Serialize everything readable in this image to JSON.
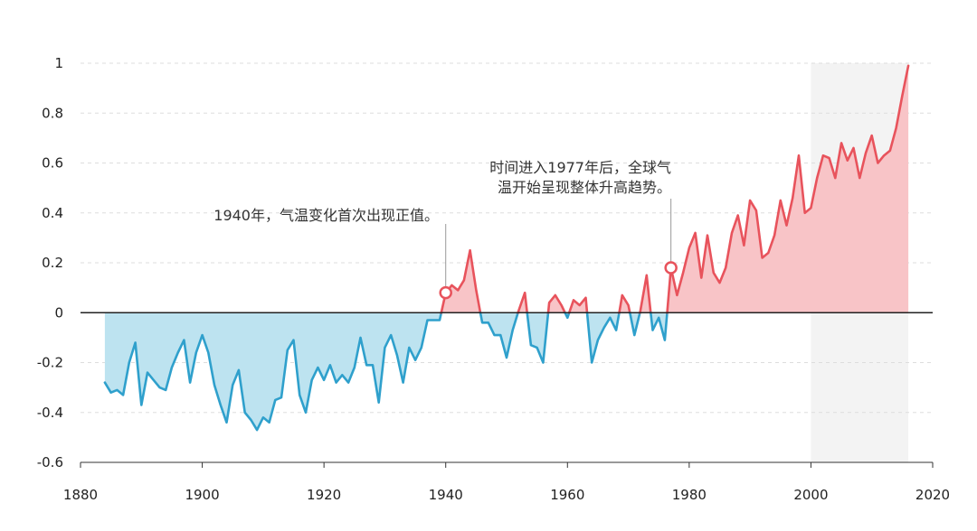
{
  "chart_data": {
    "type": "area",
    "title": "",
    "xlabel": "",
    "ylabel": "",
    "xlim": [
      1880,
      2020
    ],
    "ylim": [
      -0.6,
      1
    ],
    "x_ticks": [
      1880,
      1900,
      1920,
      1940,
      1960,
      1980,
      2000,
      2020
    ],
    "y_ticks": [
      -0.6,
      -0.4,
      -0.2,
      0,
      0.2,
      0.4,
      0.6,
      0.8,
      1
    ],
    "y_tick_labels": [
      "-0.6",
      "-0.4",
      "-0.2",
      "0",
      "0.2",
      "0.4",
      "0.6",
      "0.8",
      "1"
    ],
    "grid": "horizontal dashed",
    "shaded_region": {
      "x_start": 2000,
      "x_end": 2016,
      "color": "#f3f3f3"
    },
    "colors": {
      "negative_line": "#2fa0cc",
      "negative_fill": "#bde3f0",
      "positive_line": "#e8535c",
      "positive_fill": "#f8c4c7",
      "zero_line": "#222222",
      "grid": "#dddddd",
      "axis": "#333333"
    },
    "series": [
      {
        "x": [
          1884,
          1885,
          1886,
          1887,
          1888,
          1889,
          1890,
          1891,
          1892,
          1893,
          1894,
          1895,
          1896,
          1897,
          1898,
          1899,
          1900,
          1901,
          1902,
          1903,
          1904,
          1905,
          1906,
          1907,
          1908,
          1909,
          1910,
          1911,
          1912,
          1913,
          1914,
          1915,
          1916,
          1917,
          1918,
          1919,
          1920,
          1921,
          1922,
          1923,
          1924,
          1925,
          1926,
          1927,
          1928,
          1929,
          1930,
          1931,
          1932,
          1933,
          1934,
          1935,
          1936,
          1937,
          1938,
          1939,
          1940,
          1941,
          1942,
          1943,
          1944,
          1945,
          1946,
          1947,
          1948,
          1949,
          1950,
          1951,
          1952,
          1953,
          1954,
          1955,
          1956,
          1957,
          1958,
          1959,
          1960,
          1961,
          1962,
          1963,
          1964,
          1965,
          1966,
          1967,
          1968,
          1969,
          1970,
          1971,
          1972,
          1973,
          1974,
          1975,
          1976,
          1977,
          1978,
          1979,
          1980,
          1981,
          1982,
          1983,
          1984,
          1985,
          1986,
          1987,
          1988,
          1989,
          1990,
          1991,
          1992,
          1993,
          1994,
          1995,
          1996,
          1997,
          1998,
          1999,
          2000,
          2001,
          2002,
          2003,
          2004,
          2005,
          2006,
          2007,
          2008,
          2009,
          2010,
          2011,
          2012,
          2013,
          2014,
          2015,
          2016
        ],
        "values": [
          -0.28,
          -0.32,
          -0.31,
          -0.33,
          -0.2,
          -0.12,
          -0.37,
          -0.24,
          -0.27,
          -0.3,
          -0.31,
          -0.22,
          -0.16,
          -0.11,
          -0.28,
          -0.16,
          -0.09,
          -0.16,
          -0.29,
          -0.37,
          -0.44,
          -0.29,
          -0.23,
          -0.4,
          -0.43,
          -0.47,
          -0.42,
          -0.44,
          -0.35,
          -0.34,
          -0.15,
          -0.11,
          -0.33,
          -0.4,
          -0.27,
          -0.22,
          -0.27,
          -0.21,
          -0.28,
          -0.25,
          -0.28,
          -0.22,
          -0.1,
          -0.21,
          -0.21,
          -0.36,
          -0.14,
          -0.09,
          -0.17,
          -0.28,
          -0.14,
          -0.19,
          -0.14,
          -0.03,
          -0.03,
          -0.03,
          0.08,
          0.11,
          0.09,
          0.13,
          0.25,
          0.09,
          -0.04,
          -0.04,
          -0.09,
          -0.09,
          -0.18,
          -0.07,
          0.01,
          0.08,
          -0.13,
          -0.14,
          -0.2,
          0.04,
          0.07,
          0.03,
          -0.02,
          0.05,
          0.03,
          0.06,
          -0.2,
          -0.11,
          -0.06,
          -0.02,
          -0.07,
          0.07,
          0.03,
          -0.09,
          0.01,
          0.15,
          -0.07,
          -0.02,
          -0.11,
          0.18,
          0.07,
          0.16,
          0.26,
          0.32,
          0.14,
          0.31,
          0.16,
          0.12,
          0.18,
          0.32,
          0.39,
          0.27,
          0.45,
          0.41,
          0.22,
          0.24,
          0.31,
          0.45,
          0.35,
          0.46,
          0.63,
          0.4,
          0.42,
          0.54,
          0.63,
          0.62,
          0.54,
          0.68,
          0.61,
          0.66,
          0.54,
          0.64,
          0.71,
          0.6,
          0.63,
          0.65,
          0.74,
          0.87,
          0.99
        ]
      }
    ],
    "annotations": [
      {
        "x": 1940,
        "y": 0.08,
        "lines": [
          "1940年，气温变化首次出现正值。"
        ]
      },
      {
        "x": 1977,
        "y": 0.18,
        "lines": [
          "时间进入1977年后，全球气",
          "温开始呈现整体升高趋势。"
        ]
      }
    ]
  }
}
